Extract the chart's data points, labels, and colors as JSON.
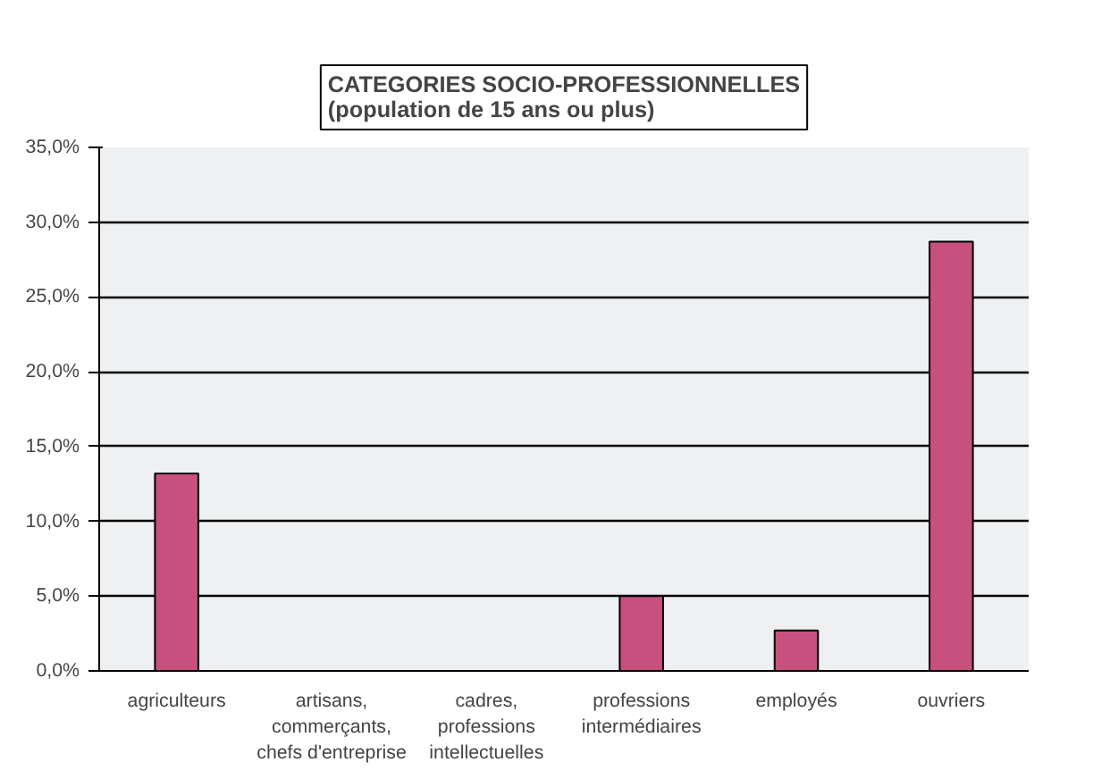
{
  "chart_data": {
    "type": "bar",
    "title": "CATEGORIES SOCIO-PROFESSIONNELLES\n(population de 15 ans ou plus)",
    "categories": [
      "agriculteurs",
      "artisans,\ncommerçants,\nchefs d'entreprise",
      "cadres,\nprofessions\nintellectuelles",
      "professions\nintermédiaires",
      "employés",
      "ouvriers"
    ],
    "values": [
      13.2,
      0,
      0,
      5.0,
      2.7,
      28.7
    ],
    "color": "#c8507e",
    "ylim": [
      0,
      35
    ],
    "yticks": [
      {
        "value": 0,
        "label": "0,0%"
      },
      {
        "value": 5,
        "label": "5,0%"
      },
      {
        "value": 10,
        "label": "10,0%"
      },
      {
        "value": 15,
        "label": "15,0%"
      },
      {
        "value": 20,
        "label": "20,0%"
      },
      {
        "value": 25,
        "label": "25,0%"
      },
      {
        "value": 30,
        "label": "30,0%"
      },
      {
        "value": 35,
        "label": "35,0%"
      }
    ],
    "grid": "y"
  }
}
